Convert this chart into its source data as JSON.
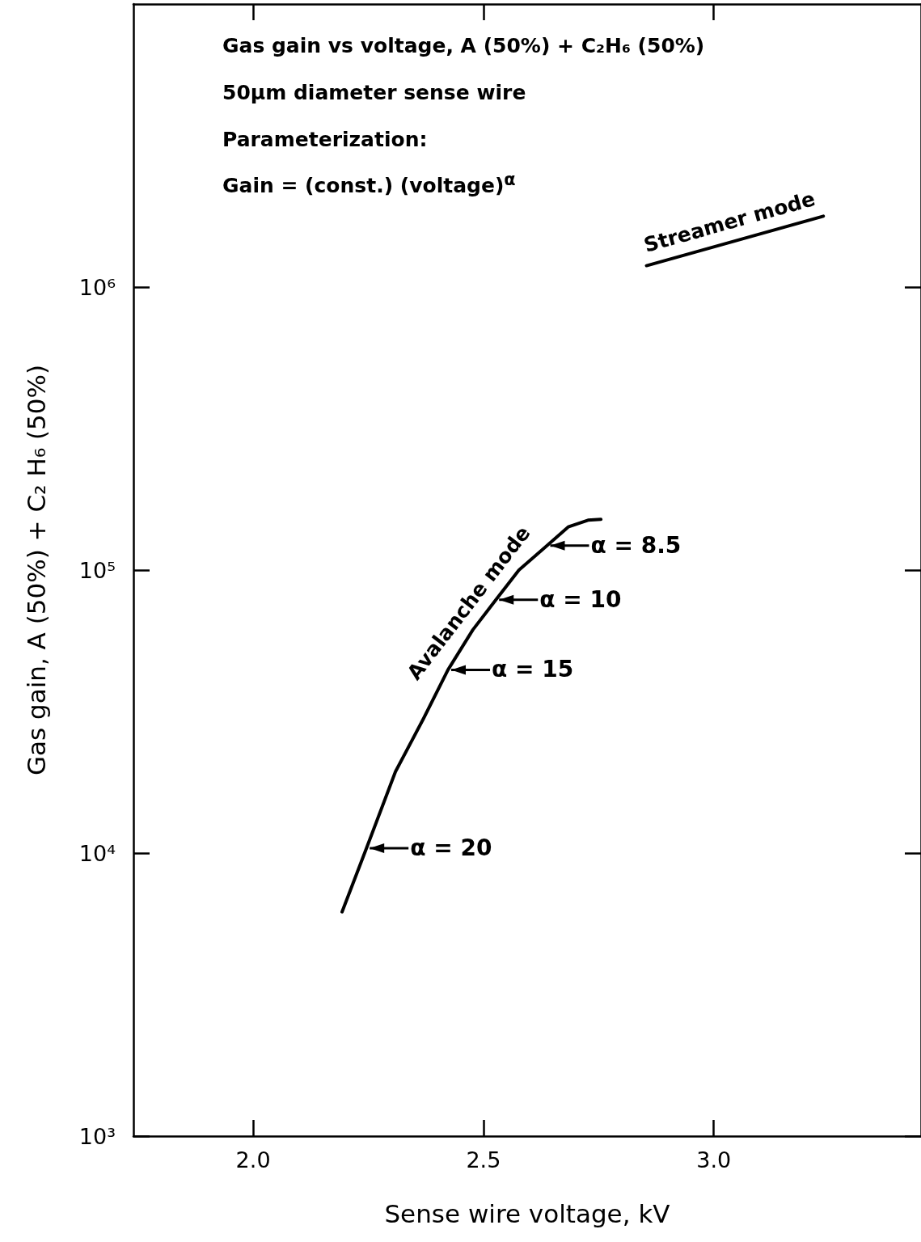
{
  "chart_data": {
    "type": "line",
    "title": "Gas gain vs voltage, A (50%) + C₂H₆ (50%)",
    "subtitle": "50μm diameter sense wire",
    "xlabel": "Sense wire voltage, kV",
    "ylabel": "Gas gain, A (50%) + C₂ H₆ (50%)",
    "log": "y",
    "grid": false,
    "legend": false,
    "marker": "none",
    "line_style": "solid",
    "xlim": [
      1.74,
      3.45
    ],
    "xticks": [
      {
        "value": 2,
        "label": "2.0"
      },
      2.5,
      {
        "value": 3,
        "label": "3.0"
      }
    ],
    "ylim": [
      1000,
      10000000
    ],
    "yticks": [
      {
        "value": 1000,
        "label": "10³"
      },
      {
        "value": 10000,
        "label": "10⁴"
      },
      {
        "value": 100000,
        "label": "10⁵"
      },
      {
        "value": 1000000,
        "label": "10⁶"
      }
    ],
    "series": [
      {
        "name": "Avalanche mode",
        "color": "#000000",
        "x": [
          2.193,
          2.246,
          2.309,
          2.37,
          2.423,
          2.477,
          2.527,
          2.577,
          2.638,
          2.684,
          2.727,
          2.755
        ],
        "values": [
          6200,
          10400,
          19400,
          29900,
          44400,
          61500,
          78500,
          100000,
          122000,
          142000,
          150000,
          151000
        ]
      },
      {
        "name": "Streamer mode",
        "color": "#000000",
        "x": [
          2.854,
          3.238
        ],
        "values": [
          1190000,
          1780000
        ]
      }
    ],
    "annotations": [
      "Parameterization:",
      "Gain = (const.) (voltage)$^{α}$",
      {
        "text": "α = 8.5",
        "x": 2.638,
        "y": 122000
      },
      {
        "text": "α = 10",
        "x": 2.527,
        "y": 78500
      },
      {
        "text": "α = 15",
        "x": 2.423,
        "y": 44400
      },
      {
        "text": "α = 20",
        "x": 2.246,
        "y": 10400
      }
    ]
  }
}
